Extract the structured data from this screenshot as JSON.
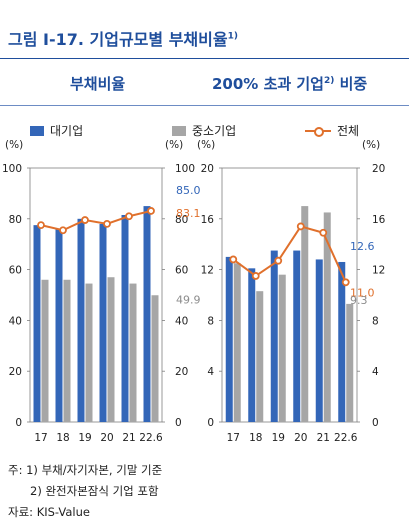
{
  "figure": {
    "title": "그림 Ⅰ-17. 기업규모별 부채비율",
    "title_sup": "1)"
  },
  "panels": {
    "left_title": "부채비율",
    "right_title_prefix": "200% 초과 기업",
    "right_title_sup": "2)",
    "right_title_suffix": " 비중"
  },
  "legend": {
    "large": "대기업",
    "sme": "중소기업",
    "total": "전체"
  },
  "notes": {
    "line1": "주: 1) 부채/자기자본, 기말 기준",
    "line2": "2) 완전자본잠식 기업 포함",
    "source": "자료: KIS-Value"
  },
  "colors": {
    "large": "#3366b8",
    "sme": "#a6a6a6",
    "total": "#e0702c",
    "title": "#1f4e9c"
  },
  "chart_data": [
    {
      "type": "bar",
      "categories": [
        "17",
        "18",
        "19",
        "20",
        "21",
        "22.6"
      ],
      "series": [
        {
          "name": "대기업",
          "values": [
            77.5,
            76,
            80,
            78,
            81.5,
            85.0
          ],
          "type": "bar"
        },
        {
          "name": "중소기업",
          "values": [
            56,
            56,
            54.5,
            57,
            54.5,
            49.9
          ],
          "type": "bar"
        },
        {
          "name": "전체",
          "values": [
            77.5,
            75.5,
            79.5,
            78,
            81,
            83.1
          ],
          "type": "line"
        }
      ],
      "ylim": [
        0,
        100
      ],
      "yticks": [
        0,
        20,
        40,
        60,
        80,
        100
      ],
      "yunit_left": "(%)",
      "yunit_right": "(%)",
      "labels": {
        "large_last": "85.0",
        "total_last": "83.1",
        "sme_last": "49.9"
      }
    },
    {
      "type": "bar",
      "categories": [
        "17",
        "18",
        "19",
        "20",
        "21",
        "22.6"
      ],
      "series": [
        {
          "name": "대기업",
          "values": [
            13.0,
            12.1,
            13.5,
            13.5,
            12.8,
            12.6
          ],
          "type": "bar"
        },
        {
          "name": "중소기업",
          "values": [
            12.5,
            10.3,
            11.6,
            17.0,
            16.5,
            9.3
          ],
          "type": "bar"
        },
        {
          "name": "전체",
          "values": [
            12.8,
            11.5,
            12.7,
            15.4,
            14.9,
            11.0
          ],
          "type": "line"
        }
      ],
      "ylim": [
        0,
        20
      ],
      "yticks": [
        0,
        4,
        8,
        12,
        16,
        20
      ],
      "yunit_left": "(%)",
      "yunit_right": "(%)",
      "labels": {
        "large_last": "12.6",
        "total_last": "11.0",
        "sme_last": "9.3"
      }
    }
  ]
}
